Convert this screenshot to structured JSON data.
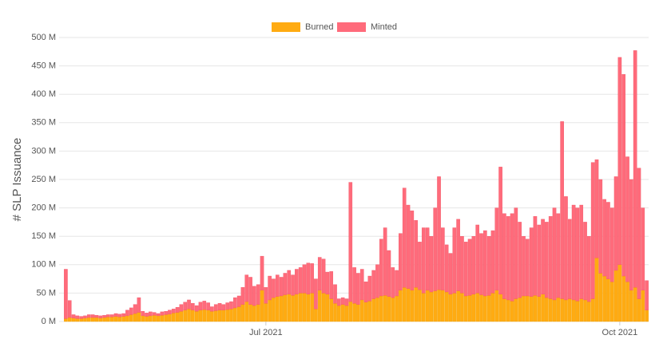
{
  "chart_data": {
    "type": "stacked_bar",
    "y_label": "# SLP Issuance",
    "categories": [
      null,
      null,
      null,
      null,
      null,
      null,
      null,
      null,
      null,
      null,
      null,
      null,
      null,
      null,
      null,
      null,
      null,
      null,
      null,
      null,
      null,
      null,
      null,
      null,
      null,
      null,
      null,
      null,
      null,
      null,
      null,
      null,
      null,
      null,
      null,
      null,
      null,
      null,
      null,
      null,
      null,
      null,
      null,
      null,
      null,
      null,
      null,
      null,
      null,
      null,
      null,
      null,
      "Jul 2021",
      null,
      null,
      null,
      null,
      null,
      null,
      null,
      null,
      null,
      null,
      null,
      null,
      null,
      null,
      null,
      null,
      null,
      null,
      null,
      null,
      null,
      null,
      null,
      null,
      null,
      null,
      null,
      null,
      null,
      null,
      null,
      null,
      null,
      null,
      null,
      null,
      null,
      null,
      null,
      null,
      null,
      null,
      null,
      null,
      null,
      null,
      null,
      null,
      null,
      null,
      null,
      null,
      null,
      null,
      null,
      null,
      null,
      null,
      null,
      null,
      null,
      null,
      null,
      null,
      null,
      null,
      null,
      null,
      null,
      null,
      null,
      null,
      null,
      null,
      null,
      null,
      null,
      null,
      null,
      null,
      null,
      null,
      null,
      null,
      null,
      null,
      null,
      null,
      null,
      null,
      null,
      "Oct 2021",
      null,
      null,
      null,
      null,
      null,
      null,
      null
    ],
    "series": [
      {
        "name": "Burned",
        "color": "#ffab12",
        "values": [
          5,
          7,
          6,
          5,
          5,
          6,
          7,
          7,
          7,
          6,
          7,
          8,
          8,
          9,
          8,
          9,
          10,
          12,
          14,
          16,
          10,
          9,
          10,
          11,
          10,
          11,
          12,
          13,
          15,
          16,
          18,
          20,
          22,
          20,
          18,
          20,
          21,
          20,
          18,
          19,
          20,
          20,
          21,
          22,
          24,
          26,
          30,
          35,
          30,
          28,
          30,
          55,
          32,
          38,
          42,
          44,
          45,
          47,
          48,
          46,
          48,
          50,
          50,
          48,
          50,
          22,
          55,
          50,
          48,
          40,
          32,
          28,
          30,
          28,
          35,
          32,
          30,
          38,
          34,
          36,
          40,
          42,
          45,
          46,
          44,
          42,
          45,
          55,
          60,
          58,
          55,
          60,
          56,
          50,
          55,
          52,
          54,
          56,
          55,
          52,
          48,
          50,
          54,
          50,
          45,
          46,
          48,
          50,
          47,
          45,
          46,
          50,
          55,
          48,
          40,
          38,
          36,
          40,
          42,
          45,
          45,
          44,
          46,
          44,
          48,
          42,
          40,
          38,
          42,
          40,
          38,
          40,
          38,
          36,
          40,
          38,
          35,
          40,
          112,
          85,
          80,
          75,
          70,
          90,
          100,
          80,
          70,
          55,
          60,
          40,
          55,
          20
        ]
      },
      {
        "name": "Minted",
        "color": "#ff6b7b",
        "values": [
          87,
          30,
          6,
          5,
          4,
          4,
          5,
          5,
          4,
          4,
          4,
          4,
          4,
          5,
          5,
          5,
          10,
          12,
          16,
          26,
          8,
          6,
          7,
          5,
          4,
          6,
          6,
          7,
          7,
          9,
          12,
          14,
          16,
          12,
          10,
          14,
          15,
          13,
          8,
          11,
          12,
          10,
          12,
          13,
          18,
          19,
          30,
          47,
          48,
          34,
          35,
          60,
          28,
          42,
          33,
          38,
          33,
          38,
          42,
          36,
          44,
          45,
          50,
          55,
          52,
          53,
          58,
          60,
          39,
          48,
          33,
          12,
          12,
          12,
          210,
          63,
          55,
          54,
          36,
          44,
          50,
          58,
          100,
          119,
          81,
          53,
          45,
          100,
          175,
          147,
          140,
          118,
          84,
          115,
          110,
          98,
          146,
          199,
          110,
          83,
          72,
          115,
          126,
          100,
          95,
          99,
          102,
          120,
          108,
          115,
          104,
          110,
          145,
          224,
          150,
          147,
          154,
          160,
          133,
          105,
          100,
          121,
          139,
          126,
          132,
          133,
          145,
          162,
          148,
          312,
          182,
          140,
          167,
          164,
          165,
          137,
          115,
          240,
          173,
          165,
          135,
          135,
          130,
          165,
          365,
          355,
          220,
          195,
          417,
          230,
          145,
          52
        ]
      }
    ],
    "ylim": [
      0,
      500
    ],
    "yticks": [
      {
        "value": 0,
        "label": "0 M"
      },
      {
        "value": 50,
        "label": "50 M"
      },
      {
        "value": 100,
        "label": "100 M"
      },
      {
        "value": 150,
        "label": "150 M"
      },
      {
        "value": 200,
        "label": "200 M"
      },
      {
        "value": 250,
        "label": "250 M"
      },
      {
        "value": 300,
        "label": "300 M"
      },
      {
        "value": 350,
        "label": "350 M"
      },
      {
        "value": 400,
        "label": "400 M"
      },
      {
        "value": 450,
        "label": "450 M"
      },
      {
        "value": 500,
        "label": "500 M"
      }
    ],
    "grid": true,
    "legend": "top"
  }
}
